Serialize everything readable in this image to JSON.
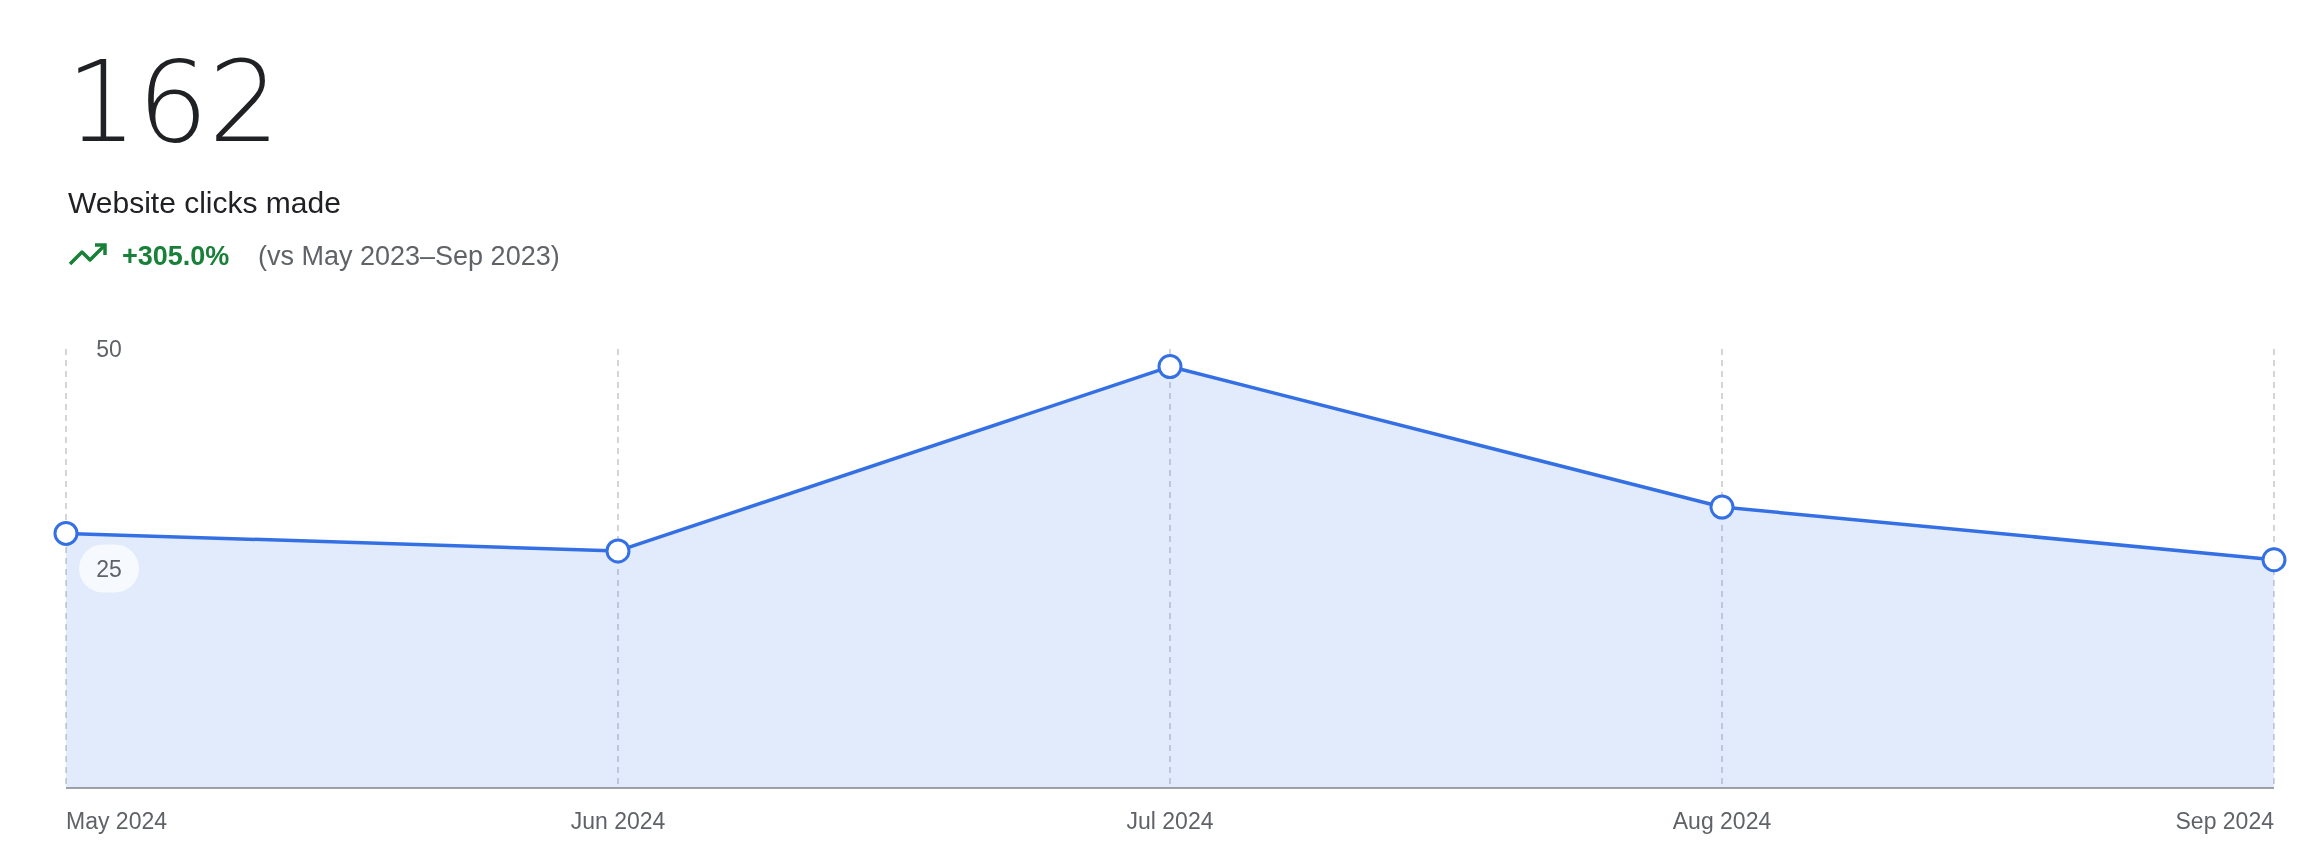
{
  "chart_data": {
    "type": "area",
    "title": "162",
    "subtitle": "Website clicks made",
    "annotations": [
      "+305.0%",
      "(vs May 2023–Sep 2023)"
    ],
    "categories": [
      "May 2024",
      "Jun 2024",
      "Jul 2024",
      "Aug 2024",
      "Sep 2024"
    ],
    "series": [
      {
        "color": "#3470e4",
        "values": [
          29,
          27,
          48,
          32,
          26
        ]
      }
    ],
    "ylim": [
      0,
      50
    ],
    "yticks": [
      25,
      50
    ],
    "grid": "x",
    "marker": "circle",
    "line_style": "solid"
  }
}
